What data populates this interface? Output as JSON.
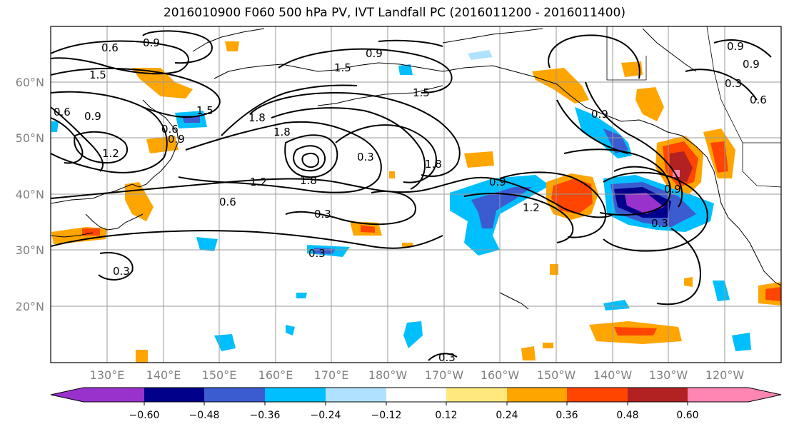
{
  "title": "2016010900 F060 500 hPa PV, IVT Landfall PC (2016011200 - 2016011400)",
  "lat_labels": [
    "60°N",
    "50°N",
    "40°N",
    "30°N",
    "20°N"
  ],
  "lon_labels": [
    "130°E",
    "140°E",
    "150°E",
    "160°E",
    "170°E",
    "180°W",
    "170°W",
    "160°W",
    "150°W",
    "140°W",
    "130°W",
    "120°W"
  ],
  "colorbar": {
    "colors": [
      "#9932cc",
      "#00008b",
      "#3b5bd1",
      "#00bfff",
      "#b0e2ff",
      "#ffffff",
      "#ffe97f",
      "#ffa500",
      "#ff4500",
      "#b22222",
      "#ff85b3"
    ],
    "tick_labels": [
      "−0.60",
      "−0.48",
      "−0.36",
      "−0.24",
      "−0.12",
      "0.12",
      "0.24",
      "0.36",
      "0.48",
      "0.60"
    ]
  },
  "contour_labels": [
    "0.6",
    "0.9",
    "0.9",
    "1.5",
    "1.5",
    "1.5",
    "0.9",
    "0.9",
    "0.9",
    "0.6",
    "0.3",
    "0.6",
    "1.5",
    "0.9",
    "0.6",
    "1.2",
    "1.8",
    "1.8",
    "0.3",
    "1.8",
    "1.2",
    "1.8",
    "0.9",
    "0.9",
    "0.6",
    "0.3",
    "1.2",
    "0.9",
    "0.3",
    "0.3",
    "0.3",
    "0.3"
  ],
  "legend_colors": {
    "contour": "#000000",
    "grid": "#9a9a9a",
    "axis_label": "#808080"
  }
}
